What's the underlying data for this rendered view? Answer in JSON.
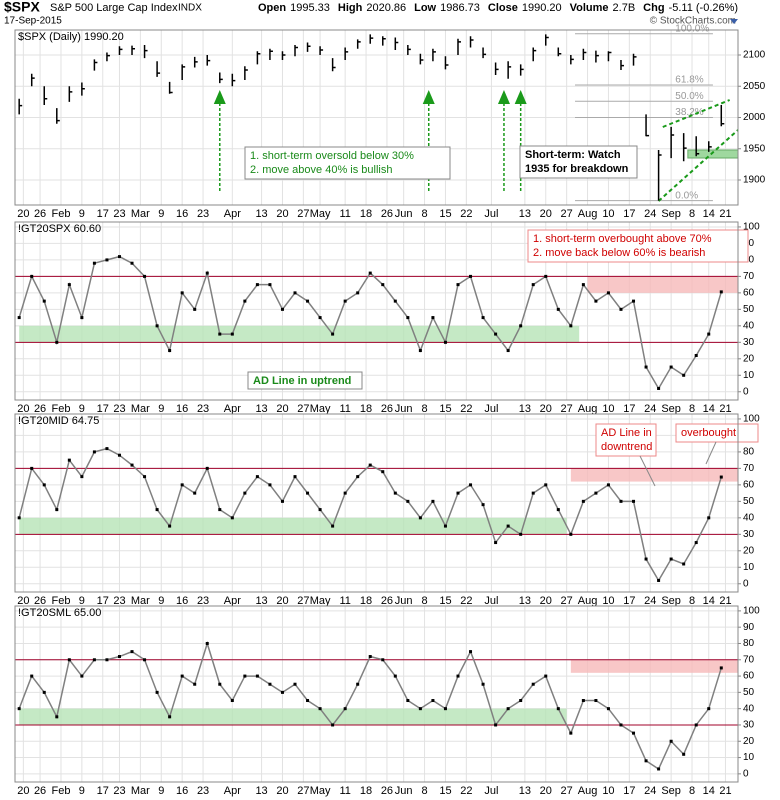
{
  "header": {
    "symbol": "$SPX",
    "name": "S&P 500 Large Cap Index",
    "exchange": "INDX",
    "date": "17-Sep-2015",
    "credit": "© StockCharts.com",
    "quote": [
      {
        "label": "Open",
        "value": "1995.33"
      },
      {
        "label": "High",
        "value": "2020.86"
      },
      {
        "label": "Low",
        "value": "1986.73"
      },
      {
        "label": "Close",
        "value": "1990.20"
      },
      {
        "label": "Volume",
        "value": "2.7B"
      },
      {
        "label": "Chg",
        "value": "-5.11 (-0.26%)"
      }
    ]
  },
  "chart_data": [
    {
      "type": "hlc",
      "title": "$SPX (Daily) 1990.20",
      "color": "#000000",
      "x": [
        0,
        3,
        6,
        9,
        12,
        15,
        18,
        21,
        24,
        27,
        30,
        33,
        36,
        39,
        42,
        45,
        48,
        51,
        54,
        57,
        60,
        63,
        66,
        69,
        72,
        75,
        78,
        81,
        84,
        87,
        90,
        93,
        96,
        99,
        102,
        105,
        108,
        111,
        114,
        117,
        120,
        123,
        126,
        129,
        132,
        135,
        138,
        141,
        144,
        147,
        150,
        153,
        156,
        159,
        162,
        165,
        168
      ],
      "high": [
        2030,
        2070,
        2050,
        2015,
        2050,
        2056,
        2093,
        2104,
        2114,
        2115,
        2116,
        2090,
        2057,
        2085,
        2097,
        2100,
        2072,
        2070,
        2082,
        2106,
        2110,
        2106,
        2116,
        2120,
        2114,
        2095,
        2112,
        2125,
        2133,
        2130,
        2128,
        2116,
        2102,
        2110,
        2098,
        2126,
        2130,
        2112,
        2088,
        2090,
        2085,
        2112,
        2133,
        2112,
        2100,
        2110,
        2107,
        2106,
        2092,
        2102,
        2005,
        1948,
        1985,
        1975,
        1970,
        1962,
        2020
      ],
      "low": [
        2005,
        2050,
        2020,
        1990,
        2025,
        2035,
        2075,
        2090,
        2100,
        2100,
        2095,
        2065,
        2038,
        2060,
        2080,
        2083,
        2055,
        2050,
        2060,
        2085,
        2092,
        2092,
        2098,
        2105,
        2100,
        2074,
        2092,
        2110,
        2118,
        2115,
        2108,
        2100,
        2085,
        2090,
        2077,
        2100,
        2112,
        2095,
        2068,
        2062,
        2067,
        2090,
        2115,
        2098,
        2085,
        2092,
        2088,
        2090,
        2076,
        2083,
        1970,
        1867,
        1935,
        1930,
        1938,
        1945,
        1986
      ],
      "close": [
        2019,
        2063,
        2030,
        1995,
        2041,
        2046,
        2088,
        2099,
        2109,
        2110,
        2107,
        2071,
        2040,
        2081,
        2089,
        2091,
        2061,
        2059,
        2076,
        2102,
        2106,
        2100,
        2112,
        2114,
        2108,
        2080,
        2105,
        2121,
        2127,
        2126,
        2120,
        2109,
        2092,
        2105,
        2084,
        2121,
        2124,
        2101,
        2077,
        2081,
        2077,
        2107,
        2128,
        2102,
        2093,
        2104,
        2099,
        2104,
        2083,
        2097,
        1971,
        1940,
        1972,
        1951,
        1942,
        1953,
        1990
      ],
      "xlim": [
        -1,
        172
      ],
      "ylim": [
        1860,
        2140
      ],
      "yticks": [
        1900,
        1950,
        2000,
        2050,
        2100
      ],
      "xticks": [
        {
          "value": 1,
          "label": "20"
        },
        {
          "value": 5,
          "label": "26"
        },
        {
          "value": 10,
          "label": "Feb"
        },
        {
          "value": 15,
          "label": "9"
        },
        {
          "value": 20,
          "label": "17"
        },
        {
          "value": 24,
          "label": "23"
        },
        {
          "value": 29,
          "label": "Mar"
        },
        {
          "value": 34,
          "label": "9"
        },
        {
          "value": 39,
          "label": "16"
        },
        {
          "value": 44,
          "label": "23"
        },
        {
          "value": 51,
          "label": "Apr"
        },
        {
          "value": 58,
          "label": "13"
        },
        {
          "value": 63,
          "label": "20"
        },
        {
          "value": 68,
          "label": "27"
        },
        {
          "value": 72,
          "label": "May"
        },
        {
          "value": 78,
          "label": "11"
        },
        {
          "value": 83,
          "label": "18"
        },
        {
          "value": 88,
          "label": "26"
        },
        {
          "value": 92,
          "label": "Jun"
        },
        {
          "value": 97,
          "label": "8"
        },
        {
          "value": 102,
          "label": "15"
        },
        {
          "value": 107,
          "label": "22"
        },
        {
          "value": 113,
          "label": "Jul"
        },
        {
          "value": 121,
          "label": "13"
        },
        {
          "value": 126,
          "label": "20"
        },
        {
          "value": 131,
          "label": "27"
        },
        {
          "value": 136,
          "label": "Aug"
        },
        {
          "value": 141,
          "label": "10"
        },
        {
          "value": 146,
          "label": "17"
        },
        {
          "value": 151,
          "label": "24"
        },
        {
          "value": 156,
          "label": "Sep"
        },
        {
          "value": 161,
          "label": "8"
        },
        {
          "value": 165,
          "label": "14"
        },
        {
          "value": 169,
          "label": "21"
        }
      ],
      "fib_levels": [
        {
          "value": 2134,
          "label": "100.0%"
        },
        {
          "value": 2052,
          "label": "61.8%"
        },
        {
          "value": 2026,
          "label": "50.0%"
        },
        {
          "value": 2000,
          "label": "38.2%"
        },
        {
          "value": 1867,
          "label": "0.0%"
        }
      ],
      "annotations": [
        [
          "1. short-term oversold below 30%",
          "2. move above 40% is bullish"
        ],
        [
          "Short-term: Watch",
          "1935 for breakdown"
        ]
      ]
    },
    {
      "type": "line",
      "title": "!GT20SPX 60.60",
      "color": "#808080",
      "values": [
        45,
        70,
        55,
        30,
        65,
        45,
        78,
        80,
        82,
        78,
        70,
        40,
        25,
        60,
        50,
        72,
        35,
        35,
        55,
        65,
        65,
        50,
        60,
        55,
        45,
        35,
        55,
        60,
        72,
        65,
        55,
        45,
        25,
        45,
        30,
        65,
        70,
        45,
        35,
        25,
        40,
        65,
        70,
        50,
        40,
        65,
        55,
        60,
        50,
        55,
        15,
        2,
        15,
        10,
        22,
        35,
        60.6
      ],
      "ylim": [
        -5,
        103
      ],
      "yticks": [
        0,
        10,
        20,
        30,
        40,
        50,
        60,
        70,
        80,
        90,
        100
      ],
      "ref_lines": [
        30,
        70
      ],
      "bands": [
        {
          "from": 30,
          "to": 40,
          "start": 0,
          "end": 134,
          "color": "#b6e3b6"
        },
        {
          "from": 60,
          "to": 70,
          "start": 136,
          "end": 172,
          "color": "#f6b9b9"
        }
      ],
      "annotations": [
        [
          "1. short-term overbought above 70%",
          "2. move back below 60% is bearish"
        ],
        [
          "AD Line in uptrend"
        ]
      ]
    },
    {
      "type": "line",
      "title": "!GT20MID 64.75",
      "color": "#808080",
      "values": [
        40,
        70,
        60,
        45,
        75,
        65,
        80,
        82,
        78,
        72,
        65,
        45,
        35,
        60,
        55,
        70,
        45,
        40,
        55,
        65,
        60,
        50,
        65,
        55,
        45,
        35,
        55,
        65,
        72,
        68,
        55,
        50,
        40,
        50,
        35,
        55,
        60,
        48,
        25,
        35,
        30,
        55,
        60,
        45,
        30,
        50,
        55,
        60,
        50,
        50,
        15,
        2,
        15,
        12,
        25,
        40,
        64.75
      ],
      "ylim": [
        -5,
        103
      ],
      "yticks": [
        0,
        10,
        20,
        30,
        40,
        50,
        60,
        70,
        80,
        90,
        100
      ],
      "ref_lines": [
        30,
        70
      ],
      "bands": [
        {
          "from": 30,
          "to": 40,
          "start": 0,
          "end": 131,
          "color": "#b6e3b6"
        },
        {
          "from": 62,
          "to": 70,
          "start": 132,
          "end": 172,
          "color": "#f6b9b9"
        }
      ],
      "annotations": [
        [
          "AD Line in",
          "downtrend"
        ],
        [
          "overbought"
        ]
      ]
    },
    {
      "type": "line",
      "title": "!GT20SML 65.00",
      "color": "#808080",
      "values": [
        40,
        60,
        50,
        35,
        70,
        60,
        70,
        70,
        72,
        75,
        70,
        50,
        35,
        60,
        55,
        80,
        55,
        45,
        60,
        60,
        55,
        50,
        55,
        45,
        40,
        30,
        40,
        55,
        72,
        70,
        60,
        45,
        40,
        45,
        40,
        60,
        75,
        55,
        30,
        40,
        45,
        55,
        60,
        40,
        25,
        45,
        45,
        40,
        30,
        25,
        8,
        3,
        20,
        12,
        30,
        40,
        65
      ],
      "ylim": [
        -5,
        103
      ],
      "yticks": [
        0,
        10,
        20,
        30,
        40,
        50,
        60,
        70,
        80,
        90,
        100
      ],
      "ref_lines": [
        30,
        70
      ],
      "bands": [
        {
          "from": 30,
          "to": 40,
          "start": 0,
          "end": 131,
          "color": "#b6e3b6"
        },
        {
          "from": 62,
          "to": 70,
          "start": 132,
          "end": 172,
          "color": "#f6b9b9"
        }
      ],
      "annotations": []
    }
  ]
}
